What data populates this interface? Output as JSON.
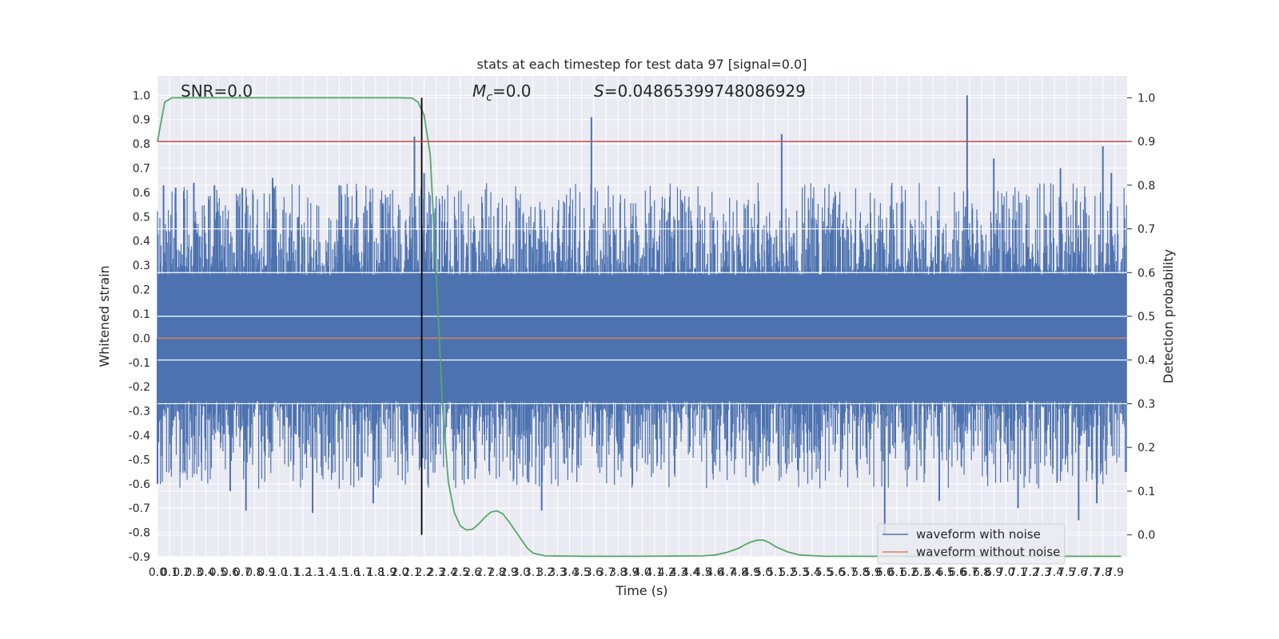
{
  "chart_data": {
    "type": "line",
    "title": "stats at each timestep for test data 97 [signal=0.0]",
    "xlabel": "Time (s)",
    "ylabel": "Whitened strain",
    "y2label": "Detection probability",
    "xlim": [
      0.0,
      8.0
    ],
    "ylim": [
      -0.9,
      1.08
    ],
    "y2lim": [
      -0.05,
      1.05
    ],
    "grid": true,
    "legend_position": "lower-right",
    "x_ticks": [
      "0.0",
      "0.1",
      "0.2",
      "0.3",
      "0.4",
      "0.5",
      "0.6",
      "0.7",
      "0.8",
      "0.9",
      "1.0",
      "1.1",
      "1.2",
      "1.3",
      "1.4",
      "1.5",
      "1.6",
      "1.7",
      "1.8",
      "1.9",
      "2.0",
      "2.1",
      "2.2",
      "2.3",
      "2.4",
      "2.5",
      "2.6",
      "2.7",
      "2.8",
      "2.9",
      "3.0",
      "3.1",
      "3.2",
      "3.3",
      "3.4",
      "3.5",
      "3.6",
      "3.7",
      "3.8",
      "3.9",
      "4.0",
      "4.1",
      "4.2",
      "4.3",
      "4.4",
      "4.5",
      "4.6",
      "4.7",
      "4.8",
      "4.9",
      "5.0",
      "5.1",
      "5.2",
      "5.3",
      "5.4",
      "5.5",
      "5.6",
      "5.7",
      "5.8",
      "5.9",
      "6.0",
      "6.1",
      "6.2",
      "6.3",
      "6.4",
      "6.5",
      "6.6",
      "6.7",
      "6.8",
      "6.9",
      "7.0",
      "7.1",
      "7.2",
      "7.3",
      "7.4",
      "7.5",
      "7.6",
      "7.7",
      "7.8",
      "7.9"
    ],
    "y_ticks": [
      "1.0",
      "0.9",
      "0.8",
      "0.7",
      "0.6",
      "0.5",
      "0.4",
      "0.3",
      "0.2",
      "0.1",
      "0.0",
      "-0.1",
      "-0.2",
      "-0.3",
      "-0.4",
      "-0.5",
      "-0.6",
      "-0.7",
      "-0.8",
      "-0.9"
    ],
    "y2_ticks": [
      "1.0",
      "0.9",
      "0.8",
      "0.7",
      "0.6",
      "0.5",
      "0.4",
      "0.3",
      "0.2",
      "0.1",
      "0.0"
    ],
    "annotations": {
      "snr": "SNR=0.0",
      "mc_symbol": "M",
      "mc_sub": "c",
      "mc_value": "=0.0",
      "s_symbol": "S",
      "s_value": "=0.04865399748086929"
    },
    "series": [
      {
        "name": "waveform with noise",
        "color": "#4c72b0",
        "description_level": "noise envelope between about -0.6 and 0.65 with isolated spikes",
        "spikes": [
          {
            "x": 0.05,
            "y": 0.63
          },
          {
            "x": 0.15,
            "y": 0.62
          },
          {
            "x": 0.3,
            "y": 0.64
          },
          {
            "x": 0.47,
            "y": 0.63
          },
          {
            "x": 0.7,
            "y": 0.62
          },
          {
            "x": 0.95,
            "y": 0.66
          },
          {
            "x": 1.5,
            "y": 0.63
          },
          {
            "x": 2.12,
            "y": 0.83
          },
          {
            "x": 2.2,
            "y": 0.68
          },
          {
            "x": 3.58,
            "y": 0.91
          },
          {
            "x": 5.15,
            "y": 0.84
          },
          {
            "x": 6.68,
            "y": 1.0
          },
          {
            "x": 6.9,
            "y": 0.74
          },
          {
            "x": 7.45,
            "y": 0.7
          },
          {
            "x": 7.8,
            "y": 0.79
          },
          {
            "x": 7.87,
            "y": 0.68
          },
          {
            "x": 0.0,
            "y": -0.6
          },
          {
            "x": 0.6,
            "y": -0.63
          },
          {
            "x": 0.73,
            "y": -0.71
          },
          {
            "x": 1.28,
            "y": -0.72
          },
          {
            "x": 1.78,
            "y": -0.68
          },
          {
            "x": 3.17,
            "y": -0.71
          },
          {
            "x": 6.0,
            "y": -0.81
          },
          {
            "x": 6.45,
            "y": -0.67
          },
          {
            "x": 7.1,
            "y": -0.7
          },
          {
            "x": 7.6,
            "y": -0.75
          },
          {
            "x": 7.75,
            "y": -0.68
          }
        ]
      },
      {
        "name": "waveform without noise",
        "color": "#dd8452",
        "x": [
          0.0,
          8.0
        ],
        "y": [
          0.0,
          0.0
        ]
      },
      {
        "axis": "right",
        "color": "#55a868",
        "x": [
          0.0,
          0.06,
          0.12,
          0.3,
          1.0,
          2.0,
          2.1,
          2.15,
          2.2,
          2.25,
          2.3,
          2.35,
          2.4,
          2.45,
          2.5,
          2.55,
          2.6,
          2.65,
          2.7,
          2.75,
          2.8,
          2.85,
          2.9,
          2.95,
          3.0,
          3.05,
          3.1,
          3.2,
          3.5,
          4.0,
          4.5,
          4.6,
          4.7,
          4.8,
          4.85,
          4.9,
          4.95,
          5.0,
          5.05,
          5.1,
          5.2,
          5.3,
          5.5,
          6.0,
          7.0,
          7.95
        ],
        "y": [
          0.9,
          0.99,
          1.0,
          1.0,
          1.0,
          1.0,
          0.999,
          0.99,
          0.96,
          0.87,
          0.6,
          0.3,
          0.12,
          0.05,
          0.02,
          0.011,
          0.013,
          0.025,
          0.04,
          0.052,
          0.055,
          0.048,
          0.03,
          0.01,
          -0.01,
          -0.03,
          -0.042,
          -0.048,
          -0.049,
          -0.049,
          -0.048,
          -0.046,
          -0.04,
          -0.03,
          -0.022,
          -0.016,
          -0.012,
          -0.012,
          -0.018,
          -0.027,
          -0.039,
          -0.046,
          -0.049,
          -0.049,
          -0.049,
          -0.049
        ]
      }
    ],
    "reference_lines": [
      {
        "orientation": "vertical",
        "x": 2.18,
        "color": "#000000"
      },
      {
        "orientation": "horizontal",
        "axis": "right",
        "y": 0.9,
        "color": "#c44e52"
      }
    ]
  }
}
